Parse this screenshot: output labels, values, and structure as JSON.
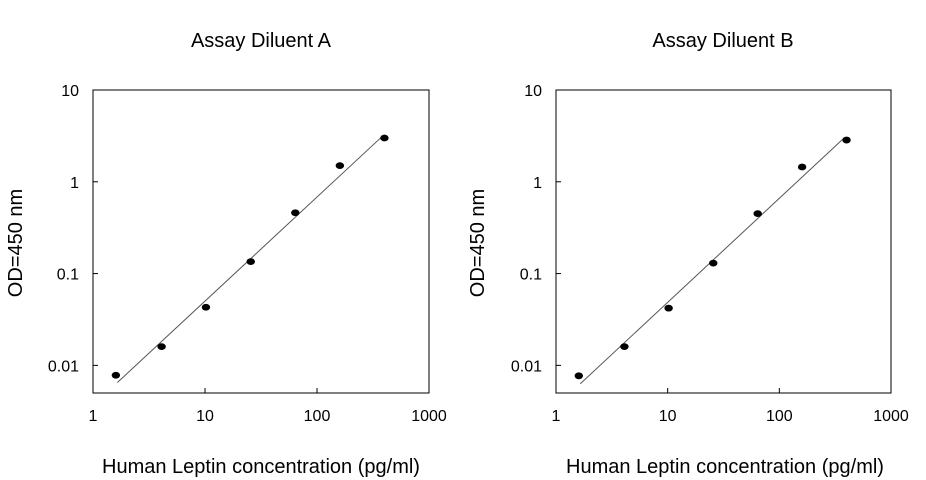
{
  "chart_data": [
    {
      "type": "scatter",
      "title": "Assay Diluent A",
      "xlabel": "Human Leptin concentration (pg/ml)",
      "ylabel": "OD=450 nm",
      "x_scale": "log",
      "y_scale": "log",
      "xlim": [
        1,
        1000
      ],
      "ylim": [
        0.005,
        10
      ],
      "x_ticks": [
        1,
        10,
        100,
        1000
      ],
      "x_tick_labels": [
        "1",
        "10",
        "100",
        "1000"
      ],
      "y_ticks": [
        0.01,
        0.1,
        1,
        10
      ],
      "y_tick_labels": [
        "0.01",
        "0.1",
        "1",
        "10"
      ],
      "grid": false,
      "series": [
        {
          "x": [
            1.6,
            4.1,
            10.2,
            25.6,
            64,
            160,
            400
          ],
          "y": [
            0.0078,
            0.016,
            0.043,
            0.135,
            0.46,
            1.5,
            3.0
          ]
        }
      ],
      "fit_line": {
        "x": [
          1.65,
          380
        ],
        "y": [
          0.0065,
          3.1
        ]
      }
    },
    {
      "type": "scatter",
      "title": "Assay Diluent B",
      "xlabel": "Human Leptin concentration (pg/ml)",
      "ylabel": "OD=450 nm",
      "x_scale": "log",
      "y_scale": "log",
      "xlim": [
        1,
        1000
      ],
      "ylim": [
        0.005,
        10
      ],
      "x_ticks": [
        1,
        10,
        100,
        1000
      ],
      "x_tick_labels": [
        "1",
        "10",
        "100",
        "1000"
      ],
      "y_ticks": [
        0.01,
        0.1,
        1,
        10
      ],
      "y_tick_labels": [
        "0.01",
        "0.1",
        "1",
        "10"
      ],
      "grid": false,
      "series": [
        {
          "x": [
            1.6,
            4.1,
            10.2,
            25.6,
            64,
            160,
            400
          ],
          "y": [
            0.0077,
            0.016,
            0.042,
            0.13,
            0.45,
            1.45,
            2.85
          ]
        }
      ],
      "fit_line": {
        "x": [
          1.65,
          380
        ],
        "y": [
          0.0063,
          3.0
        ]
      }
    }
  ],
  "colors": {
    "marker": "#000000",
    "fit_line": "#555555",
    "axis": "#000000",
    "background": "#ffffff"
  }
}
